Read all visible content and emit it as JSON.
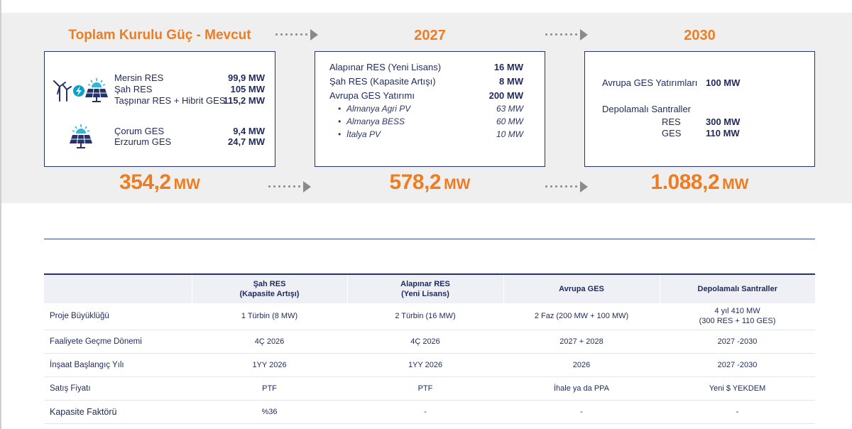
{
  "phases": {
    "current": {
      "title": "Toplam Kurulu Güç - Mevcut",
      "items": [
        {
          "name": "Mersin RES",
          "value": "99,9 MW"
        },
        {
          "name": "Şah RES",
          "value": "105 MW"
        },
        {
          "name": "Taşpınar RES + Hibrit GES",
          "value": "115,2 MW"
        },
        {
          "name": "Çorum GES",
          "value": "9,4 MW"
        },
        {
          "name": "Erzurum GES",
          "value": "24,7 MW"
        }
      ],
      "total": "354,2",
      "unit": "MW",
      "icons": [
        "wind-turbine-icon",
        "lightning-icon",
        "solar-panel-icon"
      ]
    },
    "y2027": {
      "title": "2027",
      "items": [
        {
          "name": "Alapınar RES (Yeni Lisans)",
          "value": "16 MW"
        },
        {
          "name": "Şah RES  (Kapasite Artışı)",
          "value": "8 MW"
        },
        {
          "name": "Avrupa GES Yatırımı",
          "value": "200 MW"
        }
      ],
      "subitems": [
        {
          "name": "Almanya Agri PV",
          "value": "63 MW"
        },
        {
          "name": "Almanya BESS",
          "value": "60 MW"
        },
        {
          "name": "İtalya PV",
          "value": "10 MW"
        }
      ],
      "total": "578,2",
      "unit": "MW"
    },
    "y2030": {
      "title": "2030",
      "items": [
        {
          "name": "Avrupa GES Yatırımları",
          "value": "100 MW"
        }
      ],
      "storage_title": "Depolamalı Santraller",
      "storage_items": [
        {
          "name": "RES",
          "value": "300 MW"
        },
        {
          "name": "GES",
          "value": "110 MW"
        }
      ],
      "total": "1.088,2",
      "unit": "MW"
    }
  },
  "table": {
    "headers": [
      "",
      "Şah RES\n(Kapasite Artışı)",
      "Alapınar RES\n(Yeni Lisans)",
      "Avrupa GES",
      "Depolamalı Santraller"
    ],
    "rows": [
      {
        "label": "Proje Büyüklüğü",
        "cells": [
          "1 Türbin (8 MW)",
          "2 Türbin (16 MW)",
          "2 Faz (200 MW + 100 MW)",
          "4 yıl 410 MW\n(300 RES + 110 GES)"
        ]
      },
      {
        "label": "Faaliyete Geçme Dönemi",
        "cells": [
          "4Ç 2026",
          "4Ç 2026",
          "2027 + 2028",
          "2027 -2030"
        ]
      },
      {
        "label": "İnşaat Başlangıç Yılı",
        "cells": [
          "1YY 2026",
          "1YY 2026",
          "2026",
          "2027 -2030"
        ]
      },
      {
        "label": "Satış Fiyatı",
        "cells": [
          "PTF",
          "PTF",
          "İhale ya da PPA",
          "Yeni $ YEKDEM"
        ]
      },
      {
        "label": "Kapasite Faktörü",
        "cells": [
          "%36",
          "-",
          "-",
          "-"
        ]
      }
    ]
  },
  "colors": {
    "accent": "#ee7d22",
    "navy": "#24336b",
    "band": "#efefef"
  }
}
